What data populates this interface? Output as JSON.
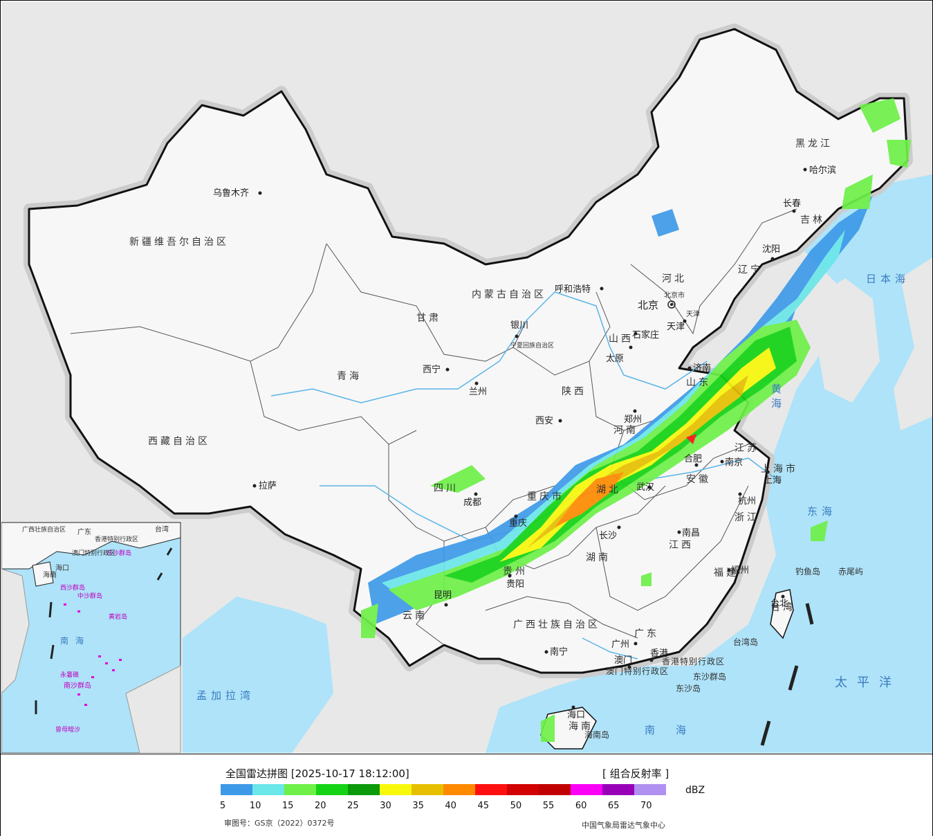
{
  "map": {
    "capital_label": "北京",
    "provinces": [
      {
        "name": "新疆维吾尔自治区"
      },
      {
        "name": "西藏自治区"
      },
      {
        "name": "青海"
      },
      {
        "name": "甘肃"
      },
      {
        "name": "四川"
      },
      {
        "name": "云南"
      },
      {
        "name": "内蒙古自治区"
      },
      {
        "name": "黑龙江"
      },
      {
        "name": "吉林"
      },
      {
        "name": "辽宁"
      },
      {
        "name": "河北"
      },
      {
        "name": "山西"
      },
      {
        "name": "陕西"
      },
      {
        "name": "河南"
      },
      {
        "name": "山东"
      },
      {
        "name": "江苏"
      },
      {
        "name": "安徽"
      },
      {
        "name": "湖北"
      },
      {
        "name": "湖南"
      },
      {
        "name": "江西"
      },
      {
        "name": "浙江"
      },
      {
        "name": "福建"
      },
      {
        "name": "贵州"
      },
      {
        "name": "重庆市"
      },
      {
        "name": "上海市"
      },
      {
        "name": "广西壮族自治区"
      },
      {
        "name": "广东"
      },
      {
        "name": "海南"
      },
      {
        "name": "宁夏回族自治区"
      },
      {
        "name": "北京市"
      },
      {
        "name": "天津"
      },
      {
        "name": "台湾"
      },
      {
        "name": "香港特别行政区"
      },
      {
        "name": "澳门特别行政区"
      }
    ],
    "cities": [
      "乌鲁木齐",
      "拉萨",
      "西宁",
      "兰州",
      "银川",
      "呼和浩特",
      "西安",
      "成都",
      "重庆",
      "贵阳",
      "昆明",
      "南宁",
      "广州",
      "香港",
      "澳门",
      "海口",
      "长沙",
      "武汉",
      "南昌",
      "福州",
      "台北",
      "杭州",
      "上海",
      "南京",
      "合肥",
      "郑州",
      "济南",
      "石家庄",
      "太原",
      "天津",
      "沈阳",
      "长春",
      "哈尔滨"
    ],
    "seas": [
      "日本海",
      "黄海",
      "东海",
      "太平洋",
      "南海",
      "孟加拉湾"
    ],
    "islands": [
      "钓鱼岛",
      "赤尾屿",
      "台湾岛",
      "东沙群岛",
      "东沙岛",
      "海南岛"
    ],
    "inset_labels": [
      "海口",
      "南海",
      "西沙群岛",
      "中沙群岛",
      "黄岩岛",
      "南沙群岛",
      "永暑礁",
      "曾母暗沙",
      "东沙群岛",
      "广东",
      "台湾",
      "香港特别行政区",
      "澳门特别行政区",
      "广西壮族自治区",
      "海南"
    ]
  },
  "legend": {
    "title": "全国雷达拼图 [2025-10-17 18:12:00]",
    "product": "[ 组合反射率 ]",
    "unit": "dBZ",
    "ticks": [
      "5",
      "10",
      "15",
      "20",
      "25",
      "30",
      "35",
      "40",
      "45",
      "50",
      "55",
      "60",
      "65",
      "70"
    ],
    "colors": [
      "#3e9ae8",
      "#6be6e9",
      "#6ef049",
      "#14d314",
      "#0a9a0a",
      "#f8f80c",
      "#e6c000",
      "#ff8a00",
      "#ff1010",
      "#d20202",
      "#c00000",
      "#fb00f7",
      "#9800b8",
      "#b090f0"
    ],
    "approval": "审图号：GS京（2022）0372号",
    "org": "中国气象局雷达气象中心"
  }
}
